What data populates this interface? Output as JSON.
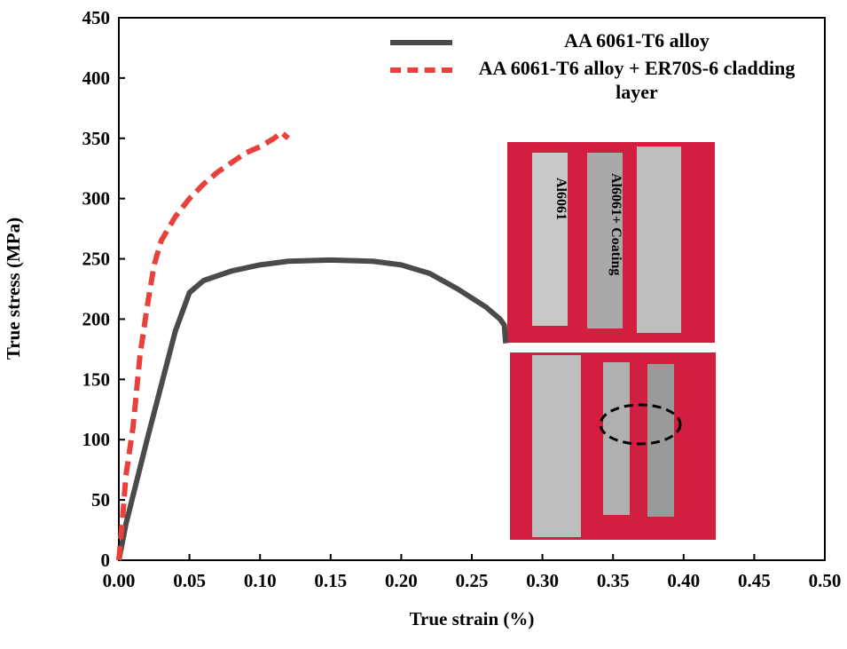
{
  "chart_data": {
    "type": "line",
    "xlabel": "True strain (%)",
    "ylabel": "True stress (MPa)",
    "xlim": [
      0,
      0.5
    ],
    "ylim": [
      0,
      450
    ],
    "xticks": [
      {
        "value": 0,
        "label": "0.00"
      },
      {
        "value": 0.05,
        "label": "0.05"
      },
      {
        "value": 0.1,
        "label": "0.10"
      },
      {
        "value": 0.15,
        "label": "0.15"
      },
      {
        "value": 0.2,
        "label": "0.20"
      },
      {
        "value": 0.25,
        "label": "0.25"
      },
      {
        "value": 0.3,
        "label": "0.30"
      },
      {
        "value": 0.35,
        "label": "0.35"
      },
      {
        "value": 0.4,
        "label": "0.40"
      },
      {
        "value": 0.45,
        "label": "0.45"
      },
      {
        "value": 0.5,
        "label": "0.50"
      }
    ],
    "yticks": [
      0,
      50,
      100,
      150,
      200,
      250,
      300,
      350,
      400,
      450
    ],
    "series": [
      {
        "name": "AA 6061-T6 alloy",
        "color": "#4a4a4a",
        "dashed": false,
        "x": [
          0,
          0.005,
          0.02,
          0.04,
          0.05,
          0.06,
          0.08,
          0.1,
          0.12,
          0.15,
          0.18,
          0.2,
          0.22,
          0.24,
          0.26,
          0.27,
          0.273,
          0.274
        ],
        "values": [
          0,
          30,
          100,
          190,
          222,
          232,
          240,
          245,
          248,
          249,
          248,
          245,
          238,
          225,
          210,
          200,
          195,
          180
        ]
      },
      {
        "name": "AA 6061-T6 alloy + ER70S-6 cladding layer",
        "color": "#e8413c",
        "dashed": true,
        "x": [
          0,
          0.003,
          0.005,
          0.01,
          0.015,
          0.02,
          0.025,
          0.03,
          0.04,
          0.05,
          0.06,
          0.07,
          0.08,
          0.09,
          0.1,
          0.11,
          0.115,
          0.12
        ],
        "values": [
          0,
          40,
          70,
          110,
          170,
          210,
          245,
          265,
          285,
          300,
          312,
          322,
          330,
          338,
          343,
          350,
          355,
          350
        ]
      }
    ],
    "inset_labels": [
      "Al6061",
      "Al6061+ Coating"
    ]
  }
}
